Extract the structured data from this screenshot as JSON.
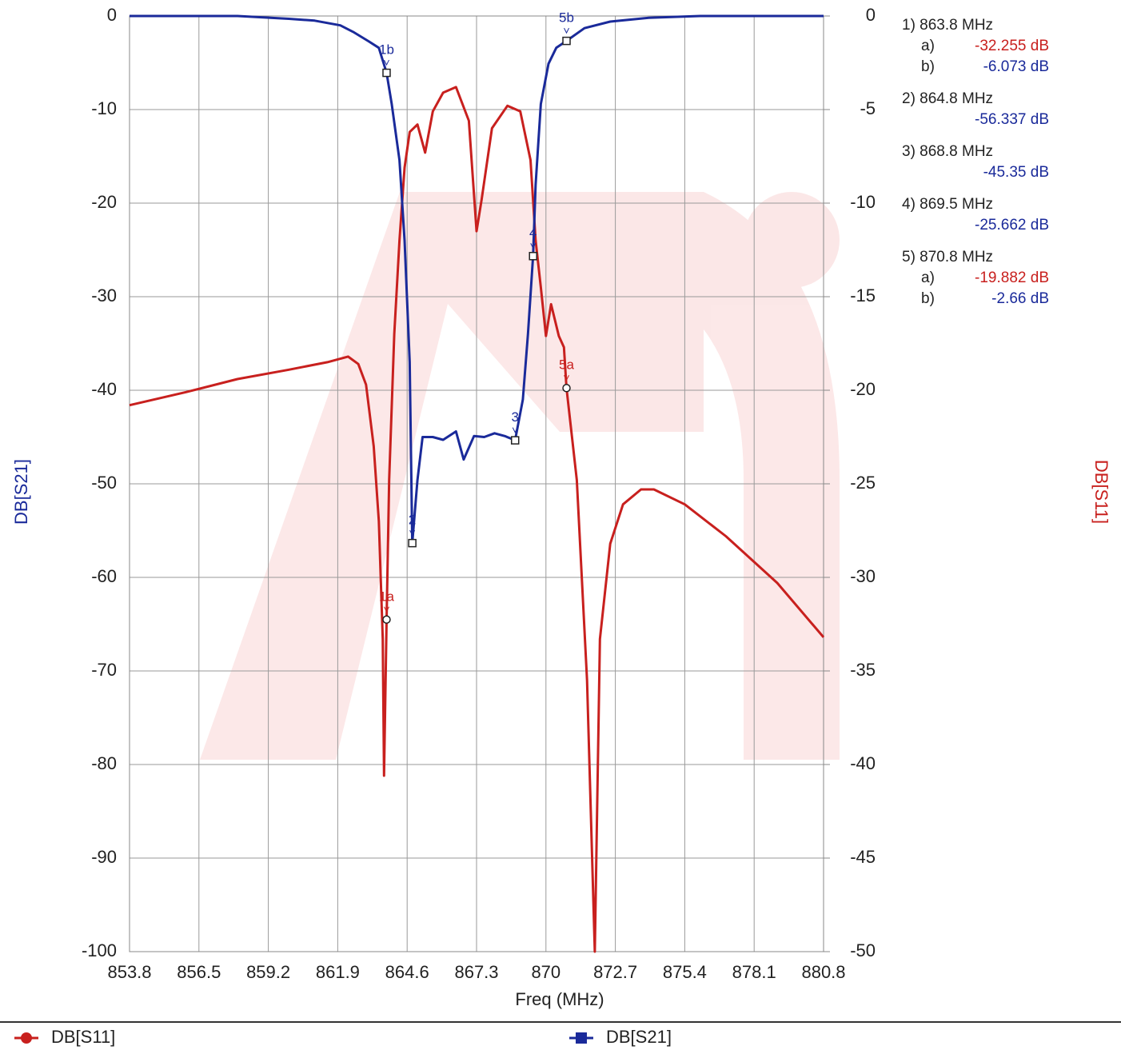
{
  "chart_data": {
    "type": "line",
    "x_label": "Freq (MHz)",
    "y_label": "DB[S21]",
    "y2_label": "DB[S11]",
    "xlim": [
      853.8,
      880.8
    ],
    "xticks": [
      853.8,
      856.5,
      859.2,
      861.9,
      864.6,
      867.3,
      870,
      872.7,
      875.4,
      878.1,
      880.8
    ],
    "ylim": [
      -100,
      0
    ],
    "yticks": [
      0,
      -10,
      -20,
      -30,
      -40,
      -50,
      -60,
      -70,
      -80,
      -90,
      -100
    ],
    "y2lim": [
      -50,
      0
    ],
    "y2ticks": [
      0,
      -5,
      -10,
      -15,
      -20,
      -25,
      -30,
      -35,
      -40,
      -45,
      -50
    ],
    "grid": true,
    "series": [
      {
        "name": "DB[S11]",
        "color": "#c8201e",
        "axis": "y2",
        "marker": "circle",
        "x": [
          853.8,
          856,
          858,
          860,
          861.5,
          862.3,
          862.7,
          863,
          863.3,
          863.5,
          863.65,
          863.7,
          863.8,
          863.9,
          864.1,
          864.3,
          864.5,
          864.7,
          865,
          865.3,
          865.6,
          866,
          866.5,
          867,
          867.3,
          867.5,
          867.9,
          868.5,
          869,
          869.4,
          869.6,
          869.8,
          870,
          870.2,
          870.5,
          870.7,
          870.8,
          871.2,
          871.6,
          871.9,
          872.1,
          872.5,
          873,
          873.7,
          874.2,
          875.4,
          877,
          879,
          880.8
        ],
        "values": [
          -20.8,
          -20.1,
          -19.4,
          -18.9,
          -18.5,
          -18.2,
          -18.6,
          -19.7,
          -23,
          -27,
          -33.3,
          -40.6,
          -32.255,
          -24.8,
          -17,
          -12,
          -8.1,
          -6.2,
          -5.8,
          -7.3,
          -5.1,
          -4.1,
          -3.8,
          -5.6,
          -11.5,
          -9.8,
          -6,
          -4.8,
          -5.1,
          -7.7,
          -12,
          -14.5,
          -17.1,
          -15.4,
          -17.1,
          -17.7,
          -19.882,
          -24.8,
          -35.5,
          -50,
          -33.3,
          -28.2,
          -26.1,
          -25.3,
          -25.3,
          -26.1,
          -27.8,
          -30.3,
          -33.2
        ]
      },
      {
        "name": "DB[S21]",
        "color": "#1a2a9a",
        "axis": "y",
        "marker": "square",
        "x": [
          853.8,
          858,
          860,
          861,
          862,
          862.5,
          863.1,
          863.5,
          863.8,
          864,
          864.3,
          864.5,
          864.7,
          864.8,
          865,
          865.2,
          865.6,
          866,
          866.5,
          866.8,
          867.2,
          867.6,
          868,
          868.4,
          868.8,
          869.1,
          869.3,
          869.5,
          869.6,
          869.8,
          870.1,
          870.4,
          870.8,
          871.5,
          872.5,
          874,
          876,
          880.8
        ],
        "values": [
          0,
          0,
          -0.3,
          -0.5,
          -1,
          -1.7,
          -2.7,
          -3.4,
          -6.073,
          -9.4,
          -15.4,
          -24,
          -37,
          -56.337,
          -49.6,
          -45,
          -45,
          -45.3,
          -44.4,
          -47.4,
          -44.9,
          -45,
          -44.6,
          -44.9,
          -45.35,
          -41,
          -34,
          -25.662,
          -18,
          -9.4,
          -5.1,
          -3.4,
          -2.66,
          -1.3,
          -0.6,
          -0.2,
          0,
          0
        ]
      }
    ],
    "markers": [
      {
        "label": "1a",
        "series": 0,
        "x": 863.8,
        "y": -32.255
      },
      {
        "label": "1b",
        "series": 1,
        "x": 863.8,
        "y": -6.073
      },
      {
        "label": "2",
        "series": 1,
        "x": 864.8,
        "y": -56.337
      },
      {
        "label": "3",
        "series": 1,
        "x": 868.8,
        "y": -45.35
      },
      {
        "label": "4",
        "series": 1,
        "x": 869.5,
        "y": -25.662
      },
      {
        "label": "5a",
        "series": 0,
        "x": 870.8,
        "y": -19.882
      },
      {
        "label": "5b",
        "series": 1,
        "x": 870.8,
        "y": -2.66
      }
    ],
    "readout": [
      {
        "title": "1) 863.8 MHz",
        "lines": [
          {
            "prefix": "a)",
            "text": "-32.255 dB",
            "series": 0
          },
          {
            "prefix": "b)",
            "text": "-6.073 dB",
            "series": 1
          }
        ]
      },
      {
        "title": "2) 864.8 MHz",
        "lines": [
          {
            "text": "-56.337 dB",
            "series": 1
          }
        ]
      },
      {
        "title": "3) 868.8 MHz",
        "lines": [
          {
            "text": "-45.35 dB",
            "series": 1
          }
        ]
      },
      {
        "title": "4) 869.5 MHz",
        "lines": [
          {
            "text": "-25.662 dB",
            "series": 1
          }
        ]
      },
      {
        "title": "5) 870.8 MHz",
        "lines": [
          {
            "prefix": "a)",
            "text": "-19.882 dB",
            "series": 0
          },
          {
            "prefix": "b)",
            "text": "-2.66 dB",
            "series": 1
          }
        ]
      }
    ]
  }
}
